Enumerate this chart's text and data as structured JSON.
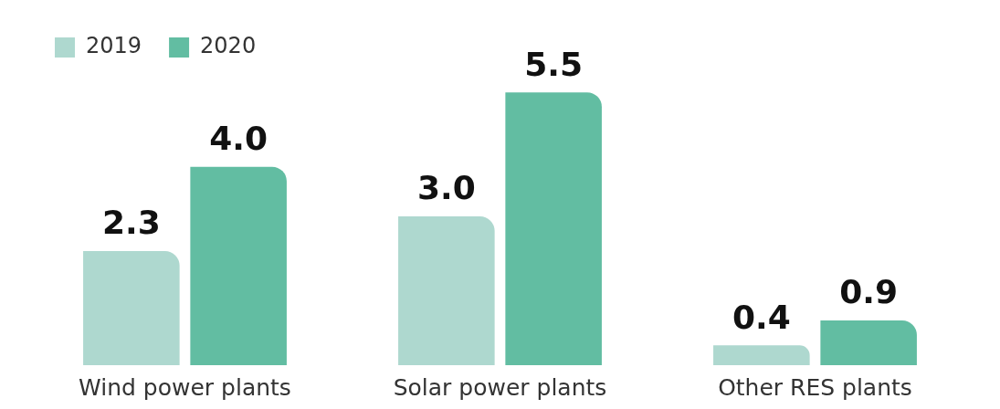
{
  "chart_data": {
    "type": "bar",
    "categories": [
      "Wind power plants",
      "Solar power plants",
      "Other RES plants"
    ],
    "series": [
      {
        "name": "2019",
        "color": "#aed8cf",
        "values": [
          2.3,
          3.0,
          0.4
        ],
        "value_labels": [
          "2.3",
          "3.0",
          "0.4"
        ]
      },
      {
        "name": "2020",
        "color": "#62bda2",
        "values": [
          4.0,
          5.5,
          0.9
        ],
        "value_labels": [
          "4.0",
          "5.5",
          "0.9"
        ]
      }
    ],
    "legend": "top left"
  }
}
